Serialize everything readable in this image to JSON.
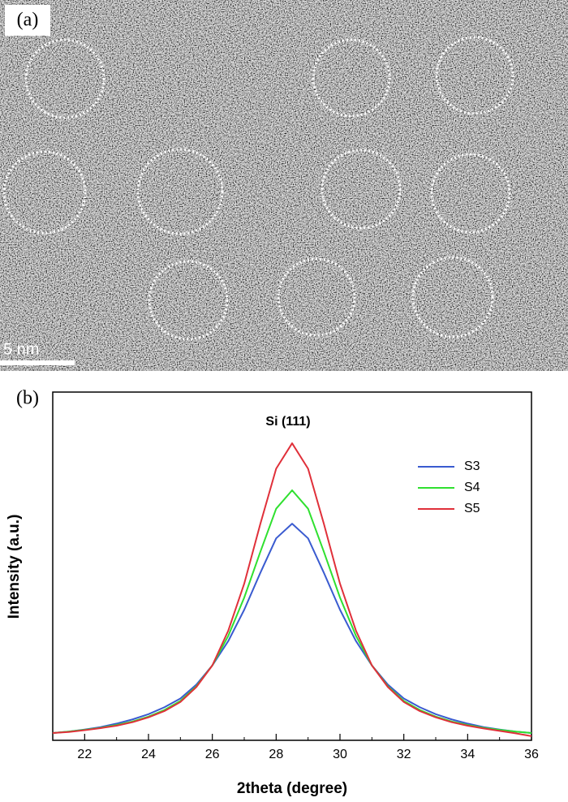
{
  "panel_a": {
    "label": "(a)",
    "scale_bar": "5 nm"
  },
  "chart_data": {
    "type": "line",
    "panel_label": "(b)",
    "annotation": "Si (111)",
    "xlabel": "2theta (degree)",
    "ylabel": "Intensity (a.u.)",
    "x": [
      21,
      21.5,
      22,
      22.5,
      23,
      23.5,
      24,
      24.5,
      25,
      25.5,
      26,
      26.5,
      27,
      27.5,
      28,
      28.5,
      29,
      29.5,
      30,
      30.5,
      31,
      31.5,
      32,
      32.5,
      33,
      33.5,
      34,
      34.5,
      35,
      35.5,
      36
    ],
    "series": [
      {
        "name": "S3",
        "color": "#3a5bd0",
        "values": [
          2.1,
          2.5,
          3.1,
          3.8,
          4.8,
          6,
          7.5,
          9.5,
          12,
          16,
          21.5,
          28.5,
          37.5,
          48,
          58,
          62.2,
          58,
          48,
          37.5,
          28.5,
          21.5,
          16,
          12,
          9.5,
          7.5,
          6,
          4.8,
          3.8,
          3.1,
          2.5,
          2.1
        ]
      },
      {
        "name": "S4",
        "color": "#2fe02f",
        "values": [
          2.1,
          2.5,
          3.0,
          3.6,
          4.4,
          5.4,
          6.8,
          8.7,
          11.3,
          15.5,
          21.5,
          30,
          41,
          54,
          66.5,
          71.8,
          66.5,
          54,
          41,
          30,
          21.5,
          15.5,
          11.3,
          8.7,
          6.8,
          5.4,
          4.4,
          3.6,
          3.0,
          2.5,
          2.1
        ]
      },
      {
        "name": "S5",
        "color": "#e0303a",
        "values": [
          2.1,
          2.4,
          2.9,
          3.5,
          4.2,
          5.2,
          6.6,
          8.4,
          11,
          15.3,
          21.5,
          31.5,
          45,
          62,
          78,
          85.3,
          78,
          62,
          45,
          31.5,
          21.5,
          15.3,
          11,
          8.4,
          6.6,
          5.2,
          4.2,
          3.4,
          2.7,
          2.0,
          1.2
        ]
      }
    ],
    "xlim": [
      21,
      36
    ],
    "xticks": [
      22,
      24,
      26,
      28,
      30,
      32,
      34,
      36
    ],
    "xminorticks": [
      21,
      23,
      25,
      27,
      29,
      31,
      33,
      35
    ],
    "ylim": [
      0,
      100
    ],
    "legend": "upper right"
  }
}
